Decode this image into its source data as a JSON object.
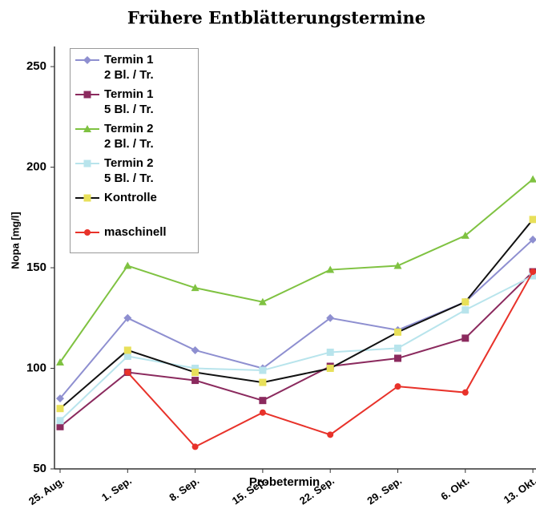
{
  "chart_data": {
    "type": "line",
    "title": "Frühere Entblätterungstermine",
    "x_label": "Probetermin",
    "y_label": "Nopa [mg/l]",
    "categories": [
      "25. Aug.",
      "1. Sep.",
      "8. Sep.",
      "15. Sep.",
      "22. Sep.",
      "29. Sep.",
      "6. Okt.",
      "13. Okt."
    ],
    "ylim": [
      50,
      260
    ],
    "yticks": [
      50,
      100,
      150,
      200,
      250
    ],
    "grid": false,
    "legend": "upper left",
    "series": [
      {
        "name": "Termin 1\n2 Bl. / Tr.",
        "color": "#8e8fd0",
        "marker": "diamond",
        "marker_color": "#8e8fd0",
        "values": [
          85,
          125,
          109,
          100,
          125,
          119,
          133,
          164
        ]
      },
      {
        "name": "Termin 1\n5 Bl. / Tr.",
        "color": "#8b2a5e",
        "marker": "square",
        "marker_color": "#8b2a5e",
        "values": [
          71,
          98,
          94,
          84,
          101,
          105,
          115,
          148
        ]
      },
      {
        "name": "Termin 2\n2 Bl. / Tr.",
        "color": "#7fc241",
        "marker": "triangle",
        "marker_color": "#7fc241",
        "values": [
          103,
          151,
          140,
          133,
          149,
          151,
          166,
          194
        ]
      },
      {
        "name": "Termin 2\n5 Bl. / Tr.",
        "color": "#b8e4ec",
        "marker": "square",
        "marker_color": "#b8e4ec",
        "values": [
          74,
          106,
          100,
          99,
          108,
          110,
          129,
          146
        ]
      },
      {
        "name": "Kontrolle",
        "color": "#111111",
        "marker": "square",
        "marker_color": "#e8e05a",
        "values": [
          80,
          109,
          98,
          93,
          100,
          118,
          133,
          174
        ]
      },
      {
        "name": "maschinell",
        "color": "#e8322a",
        "marker": "circle",
        "marker_color": "#e8322a",
        "values": [
          null,
          98,
          61,
          78,
          67,
          91,
          88,
          148
        ]
      }
    ]
  }
}
